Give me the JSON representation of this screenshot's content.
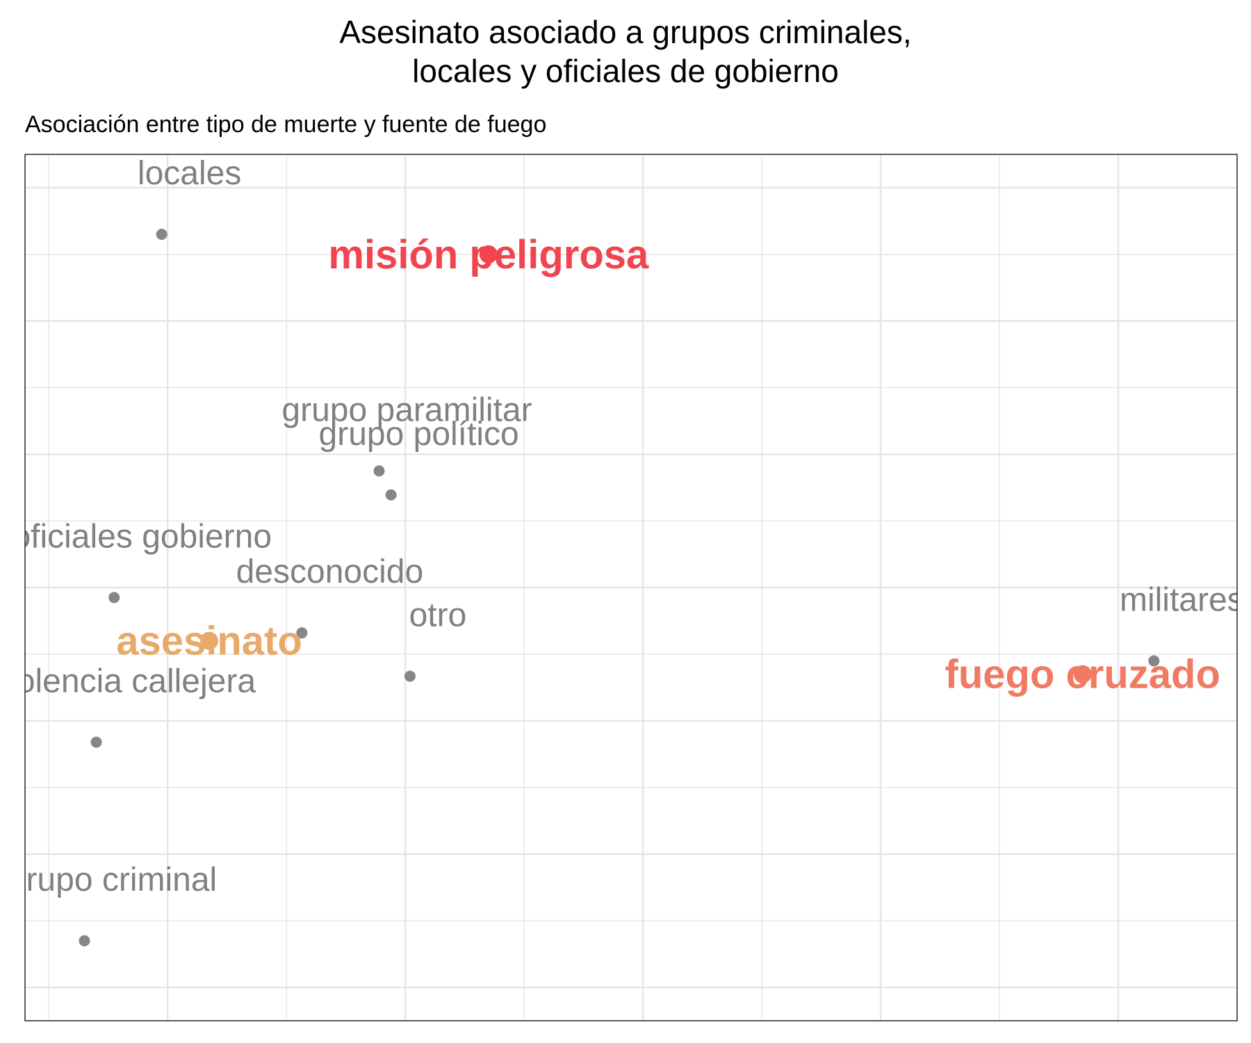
{
  "chart_data": {
    "type": "scatter",
    "title": [
      "Asesinato asociado a grupos criminales,",
      "locales y oficiales de gobierno"
    ],
    "subtitle": "Asociación entre tipo de muerte y fuente de fuego",
    "xlabel": "",
    "ylabel": "",
    "xlim": [
      -0.12,
      0.9
    ],
    "ylim": [
      -0.85,
      0.45
    ],
    "grid": true,
    "axis_tick_labels_visible": false,
    "highlight_colors": {
      "misión peligrosa": "#f0454f",
      "fuego cruzado": "#f07a62",
      "asesinato": "#e8a96a"
    },
    "muted_color": "#808080",
    "points": [
      {
        "label": "locales",
        "x": -0.005,
        "y": 0.33,
        "group": "source"
      },
      {
        "label": "misión peligrosa",
        "x": 0.27,
        "y": 0.3,
        "group": "type"
      },
      {
        "label": "grupo paramilitar",
        "x": 0.178,
        "y": -0.025,
        "group": "source"
      },
      {
        "label": "grupo político",
        "x": 0.188,
        "y": -0.061,
        "group": "source"
      },
      {
        "label": "oficiales gobierno",
        "x": -0.045,
        "y": -0.215,
        "group": "source"
      },
      {
        "label": "desconocido",
        "x": 0.113,
        "y": -0.268,
        "group": "source"
      },
      {
        "label": "asesinato",
        "x": 0.035,
        "y": -0.28,
        "group": "type"
      },
      {
        "label": "otro",
        "x": 0.204,
        "y": -0.333,
        "group": "source"
      },
      {
        "label": "violencia callejera",
        "x": -0.06,
        "y": -0.432,
        "group": "source"
      },
      {
        "label": "grupo criminal",
        "x": -0.07,
        "y": -0.73,
        "group": "source"
      },
      {
        "label": "militares",
        "x": 0.83,
        "y": -0.31,
        "group": "source"
      },
      {
        "label": "fuego cruzado",
        "x": 0.77,
        "y": -0.33,
        "group": "type"
      }
    ]
  }
}
